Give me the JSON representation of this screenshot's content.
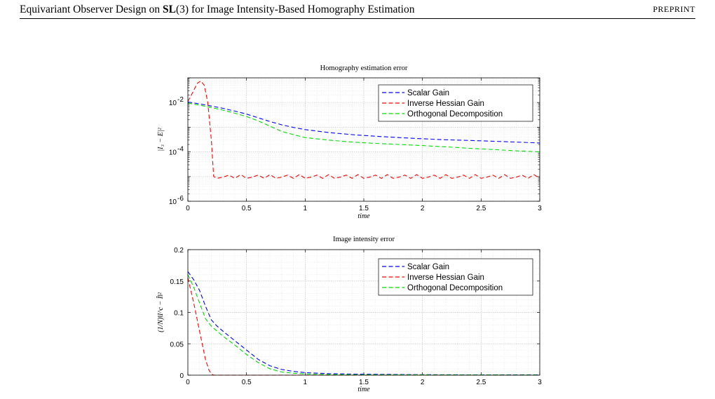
{
  "header": {
    "title_pre": "Equivariant Observer Design on ",
    "title_group": "SL",
    "title_group_arg": "(3)",
    "title_post": " for Image Intensity-Based Homography Estimation",
    "right_label": "PREPRINT"
  },
  "chart_data": [
    {
      "type": "line",
      "title": "Homography estimation error",
      "xlabel": "time",
      "ylabel": "|I₃ − E|²",
      "yscale": "log",
      "xlim": [
        0,
        3
      ],
      "ylim": [
        1e-06,
        0.1
      ],
      "xticks": [
        "0",
        "0.5",
        "1",
        "1.5",
        "2",
        "2.5",
        "3"
      ],
      "yticks": [
        {
          "base": "10",
          "exp": "-6",
          "value": 1e-06
        },
        {
          "base": "10",
          "exp": "-4",
          "value": 0.0001
        },
        {
          "base": "10",
          "exp": "-2",
          "value": 0.01
        }
      ],
      "grid": true,
      "legend_position": "top-right",
      "series": [
        {
          "name": "Scalar Gain",
          "color": "#0000ff",
          "x": [
            0,
            0.1,
            0.2,
            0.3,
            0.4,
            0.5,
            0.6,
            0.7,
            0.8,
            0.9,
            1.0,
            1.2,
            1.4,
            1.6,
            1.8,
            2.0,
            2.2,
            2.4,
            2.6,
            2.8,
            3.0
          ],
          "y": [
            0.0105,
            0.0088,
            0.0072,
            0.0058,
            0.0045,
            0.0034,
            0.0024,
            0.0017,
            0.00125,
            0.00098,
            0.0008,
            0.00061,
            0.0005,
            0.00043,
            0.00038,
            0.00034,
            0.00031,
            0.00029,
            0.00027,
            0.00025,
            0.00023
          ]
        },
        {
          "name": "Inverse Hessian Gain",
          "color": "#ff0000",
          "x": [
            0,
            0.04,
            0.08,
            0.11,
            0.14,
            0.17,
            0.2,
            0.22,
            0.25,
            0.3,
            0.35,
            0.4,
            0.45,
            0.5,
            0.55,
            0.6,
            0.65,
            0.7,
            0.75,
            0.8,
            0.85,
            0.9,
            0.95,
            1.0,
            1.05,
            1.1,
            1.15,
            1.2,
            1.25,
            1.3,
            1.35,
            1.4,
            1.45,
            1.5,
            1.55,
            1.6,
            1.65,
            1.7,
            1.75,
            1.8,
            1.85,
            1.9,
            1.95,
            2.0,
            2.05,
            2.1,
            2.15,
            2.2,
            2.25,
            2.3,
            2.35,
            2.4,
            2.45,
            2.5,
            2.55,
            2.6,
            2.65,
            2.7,
            2.75,
            2.8,
            2.85,
            2.9,
            2.95,
            3.0
          ],
          "y": [
            0.011,
            0.025,
            0.06,
            0.075,
            0.05,
            0.01,
            0.0003,
            1e-05,
            8.5e-06,
            9.5e-06,
            1.15e-05,
            8.5e-06,
            1.2e-05,
            8.5e-06,
            9.5e-06,
            1.15e-05,
            8.5e-06,
            1.2e-05,
            8.5e-06,
            9.5e-06,
            1.15e-05,
            8.5e-06,
            1.2e-05,
            8.5e-06,
            9.5e-06,
            1.15e-05,
            8.5e-06,
            1.2e-05,
            8.5e-06,
            9.5e-06,
            1.15e-05,
            8.5e-06,
            1.2e-05,
            8.5e-06,
            9.5e-06,
            1.15e-05,
            8.5e-06,
            1.2e-05,
            8.5e-06,
            9.5e-06,
            1.15e-05,
            8.5e-06,
            1.2e-05,
            8.5e-06,
            9.5e-06,
            1.15e-05,
            8.5e-06,
            1.2e-05,
            8.5e-06,
            9.5e-06,
            1.15e-05,
            8.5e-06,
            1.2e-05,
            8.5e-06,
            9.5e-06,
            1.15e-05,
            8.5e-06,
            1.2e-05,
            8.5e-06,
            9.5e-06,
            1.15e-05,
            8.5e-06,
            1.2e-05,
            8.5e-06
          ]
        },
        {
          "name": "Orthogonal Decomposition",
          "color": "#00dd00",
          "x": [
            0,
            0.1,
            0.2,
            0.3,
            0.4,
            0.5,
            0.6,
            0.7,
            0.8,
            0.9,
            1.0,
            1.2,
            1.4,
            1.6,
            1.8,
            2.0,
            2.2,
            2.4,
            2.6,
            2.8,
            3.0
          ],
          "y": [
            0.0095,
            0.0078,
            0.0063,
            0.0049,
            0.0037,
            0.0027,
            0.0018,
            0.0011,
            0.00067,
            0.0005,
            0.00038,
            0.0003,
            0.00025,
            0.00022,
            0.0002,
            0.00018,
            0.00016,
            0.00014,
            0.000125,
            0.00011,
            0.0001
          ]
        }
      ]
    },
    {
      "type": "line",
      "title": "Image intensity error",
      "xlabel": "time",
      "ylabel": "(1/N)‖I^c − Î‖²",
      "yscale": "linear",
      "xlim": [
        0,
        3
      ],
      "ylim": [
        0,
        0.2
      ],
      "xticks": [
        "0",
        "0.5",
        "1",
        "1.5",
        "2",
        "2.5",
        "3"
      ],
      "yticks": [
        "0",
        "0.05",
        "0.1",
        "0.15",
        "0.2"
      ],
      "grid": true,
      "legend_position": "top-right",
      "series": [
        {
          "name": "Scalar Gain",
          "color": "#0000ff",
          "x": [
            0,
            0.05,
            0.1,
            0.15,
            0.2,
            0.25,
            0.3,
            0.4,
            0.5,
            0.6,
            0.7,
            0.8,
            0.9,
            1.0,
            1.2,
            1.5,
            2.0,
            2.5,
            3.0
          ],
          "y": [
            0.165,
            0.152,
            0.135,
            0.11,
            0.088,
            0.078,
            0.07,
            0.055,
            0.04,
            0.025,
            0.015,
            0.009,
            0.006,
            0.004,
            0.0025,
            0.0015,
            0.0008,
            0.0005,
            0.0004
          ]
        },
        {
          "name": "Inverse Hessian Gain",
          "color": "#ff0000",
          "x": [
            0,
            0.05,
            0.1,
            0.15,
            0.18,
            0.2,
            0.22,
            0.5,
            1.0,
            1.5,
            2.0,
            2.5,
            3.0
          ],
          "y": [
            0.155,
            0.115,
            0.07,
            0.025,
            0.008,
            0.002,
            0.0,
            0.0,
            0.0,
            0.0,
            0.0,
            0.0,
            0.0
          ]
        },
        {
          "name": "Orthogonal Decomposition",
          "color": "#00dd00",
          "x": [
            0,
            0.05,
            0.1,
            0.15,
            0.2,
            0.25,
            0.3,
            0.4,
            0.5,
            0.6,
            0.7,
            0.8,
            0.9,
            1.0,
            1.2,
            1.5,
            2.0,
            2.5,
            3.0
          ],
          "y": [
            0.16,
            0.14,
            0.115,
            0.09,
            0.078,
            0.07,
            0.062,
            0.048,
            0.033,
            0.02,
            0.01,
            0.005,
            0.003,
            0.002,
            0.001,
            0.0006,
            0.0004,
            0.0003,
            0.0002
          ]
        }
      ]
    }
  ]
}
